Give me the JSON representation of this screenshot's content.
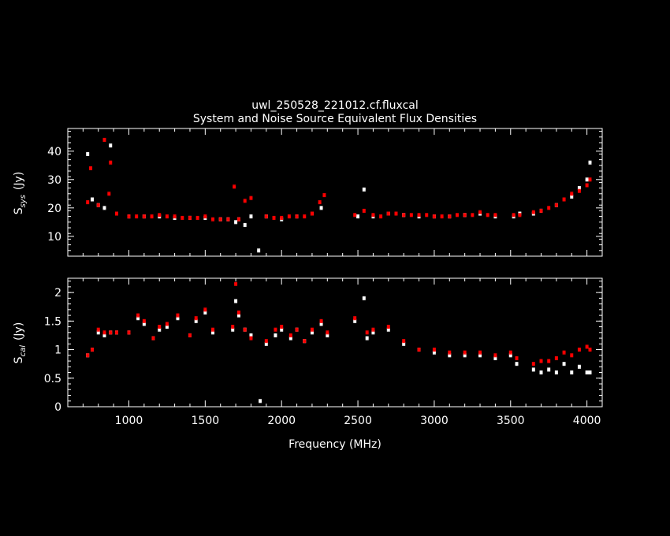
{
  "figure": {
    "title": "uwl_250528_221012.cf.fluxcal",
    "subtitle": "System and Noise Source Equivalent Flux Densities",
    "xlabel": "Frequency (MHz)"
  },
  "colors": {
    "background": "#000000",
    "axes": "#ffffff",
    "series_a": "#ffffff",
    "series_b": "#ff0000"
  },
  "chart_data": [
    {
      "type": "scatter",
      "panel": "top",
      "ylabel_main": "S",
      "ylabel_sub": "sys",
      "ylabel_unit": "(Jy)",
      "xlim": [
        600,
        4100
      ],
      "ylim": [
        3,
        48
      ],
      "xticks": [
        1000,
        1500,
        2000,
        2500,
        3000,
        3500,
        4000
      ],
      "yticks": [
        10,
        20,
        30,
        40
      ],
      "error_bars": true,
      "grid": false,
      "series": [
        {
          "color": "#ffffff",
          "x": [
            730,
            760,
            800,
            840,
            880,
            920,
            1000,
            1100,
            1200,
            1300,
            1400,
            1500,
            1600,
            1650,
            1700,
            1720,
            1760,
            1800,
            1850,
            1900,
            2000,
            2100,
            2200,
            2260,
            2500,
            2540,
            2600,
            2700,
            2800,
            2900,
            3000,
            3100,
            3200,
            3300,
            3400,
            3520,
            3560,
            3650,
            3700,
            3800,
            3900,
            3950,
            4000,
            4020
          ],
          "y": [
            39,
            23,
            21,
            20,
            42,
            18,
            17,
            17,
            17,
            16.5,
            16.5,
            16.5,
            16,
            16,
            15,
            16,
            14,
            17,
            5,
            17,
            16,
            17,
            18,
            20,
            17,
            26.5,
            17,
            18,
            17.5,
            17,
            17,
            17,
            17.5,
            18,
            17,
            17,
            18,
            18,
            19,
            21,
            24,
            27,
            30,
            36
          ]
        },
        {
          "color": "#ff0000",
          "x": [
            730,
            750,
            800,
            840,
            870,
            880,
            920,
            1000,
            1050,
            1100,
            1150,
            1200,
            1250,
            1300,
            1350,
            1400,
            1450,
            1500,
            1550,
            1600,
            1650,
            1690,
            1720,
            1760,
            1800,
            1900,
            1950,
            2000,
            2050,
            2100,
            2150,
            2200,
            2250,
            2280,
            2480,
            2540,
            2600,
            2650,
            2700,
            2750,
            2800,
            2850,
            2900,
            2950,
            3000,
            3050,
            3100,
            3150,
            3200,
            3250,
            3300,
            3350,
            3400,
            3520,
            3560,
            3650,
            3700,
            3750,
            3800,
            3850,
            3900,
            3950,
            4000,
            4020
          ],
          "y": [
            22,
            34,
            21,
            44,
            25,
            36,
            18,
            17,
            17,
            17,
            17,
            17.5,
            17,
            17,
            16.5,
            16.5,
            16.5,
            17,
            16,
            16,
            16,
            27.5,
            16,
            22.5,
            23.5,
            17,
            16.5,
            16.5,
            17,
            17,
            17,
            18,
            22,
            24.5,
            17.5,
            19,
            17.5,
            17,
            18,
            18,
            17.5,
            17.5,
            17.5,
            17.5,
            17,
            17,
            17,
            17.5,
            17.5,
            17.5,
            18.5,
            17.5,
            17.5,
            17.5,
            17.5,
            18.5,
            19,
            20,
            21,
            23,
            25,
            26,
            28,
            30
          ]
        }
      ]
    },
    {
      "type": "scatter",
      "panel": "bottom",
      "ylabel_main": "S",
      "ylabel_sub": "cal",
      "ylabel_unit": "(Jy)",
      "xlim": [
        600,
        4100
      ],
      "ylim": [
        0,
        2.25
      ],
      "xticks": [
        1000,
        1500,
        2000,
        2500,
        3000,
        3500,
        4000
      ],
      "xtick_labels": [
        "1000",
        "1500",
        "2000",
        "2500",
        "3000",
        "3500",
        "4000"
      ],
      "yticks": [
        0,
        0.5,
        1,
        1.5,
        2
      ],
      "ytick_labels": [
        "0",
        "0.5",
        "1",
        "1.5",
        "2"
      ],
      "error_bars": true,
      "grid": false,
      "series": [
        {
          "color": "#ffffff",
          "x": [
            730,
            760,
            800,
            840,
            880,
            920,
            1000,
            1060,
            1100,
            1160,
            1200,
            1250,
            1320,
            1400,
            1440,
            1500,
            1550,
            1680,
            1700,
            1720,
            1760,
            1800,
            1860,
            1900,
            1960,
            2000,
            2060,
            2100,
            2150,
            2200,
            2260,
            2300,
            2480,
            2540,
            2560,
            2600,
            2700,
            2800,
            2900,
            3000,
            3100,
            3200,
            3300,
            3400,
            3500,
            3540,
            3650,
            3700,
            3750,
            3800,
            3850,
            3900,
            3950,
            4000,
            4020
          ],
          "y": [
            0.9,
            1.0,
            1.3,
            1.25,
            1.3,
            1.3,
            1.3,
            1.55,
            1.45,
            1.2,
            1.35,
            1.4,
            1.55,
            1.25,
            1.5,
            1.65,
            1.3,
            1.35,
            1.85,
            1.6,
            1.35,
            1.25,
            0.1,
            1.1,
            1.25,
            1.35,
            1.2,
            1.35,
            1.15,
            1.3,
            1.45,
            1.25,
            1.5,
            1.9,
            1.2,
            1.3,
            1.35,
            1.1,
            1.0,
            0.95,
            0.9,
            0.9,
            0.9,
            0.85,
            0.9,
            0.75,
            0.65,
            0.6,
            0.65,
            0.6,
            0.75,
            0.6,
            0.7,
            0.6,
            0.6
          ]
        },
        {
          "color": "#ff0000",
          "x": [
            730,
            760,
            800,
            840,
            880,
            920,
            1000,
            1060,
            1100,
            1160,
            1200,
            1250,
            1320,
            1400,
            1440,
            1500,
            1550,
            1680,
            1700,
            1720,
            1760,
            1800,
            1900,
            1960,
            2000,
            2060,
            2100,
            2150,
            2200,
            2260,
            2300,
            2480,
            2560,
            2600,
            2700,
            2800,
            2900,
            3000,
            3100,
            3200,
            3300,
            3400,
            3500,
            3540,
            3650,
            3700,
            3750,
            3800,
            3850,
            3900,
            3950,
            4000,
            4020
          ],
          "y": [
            0.9,
            1.0,
            1.35,
            1.3,
            1.3,
            1.3,
            1.3,
            1.6,
            1.5,
            1.2,
            1.4,
            1.45,
            1.6,
            1.25,
            1.55,
            1.7,
            1.35,
            1.4,
            2.15,
            1.65,
            1.35,
            1.2,
            1.15,
            1.35,
            1.4,
            1.25,
            1.35,
            1.15,
            1.35,
            1.5,
            1.3,
            1.55,
            1.3,
            1.35,
            1.4,
            1.15,
            1.0,
            1.0,
            0.95,
            0.95,
            0.95,
            0.9,
            0.95,
            0.85,
            0.75,
            0.8,
            0.8,
            0.85,
            0.95,
            0.9,
            1.0,
            1.05,
            1.0
          ]
        }
      ]
    }
  ]
}
